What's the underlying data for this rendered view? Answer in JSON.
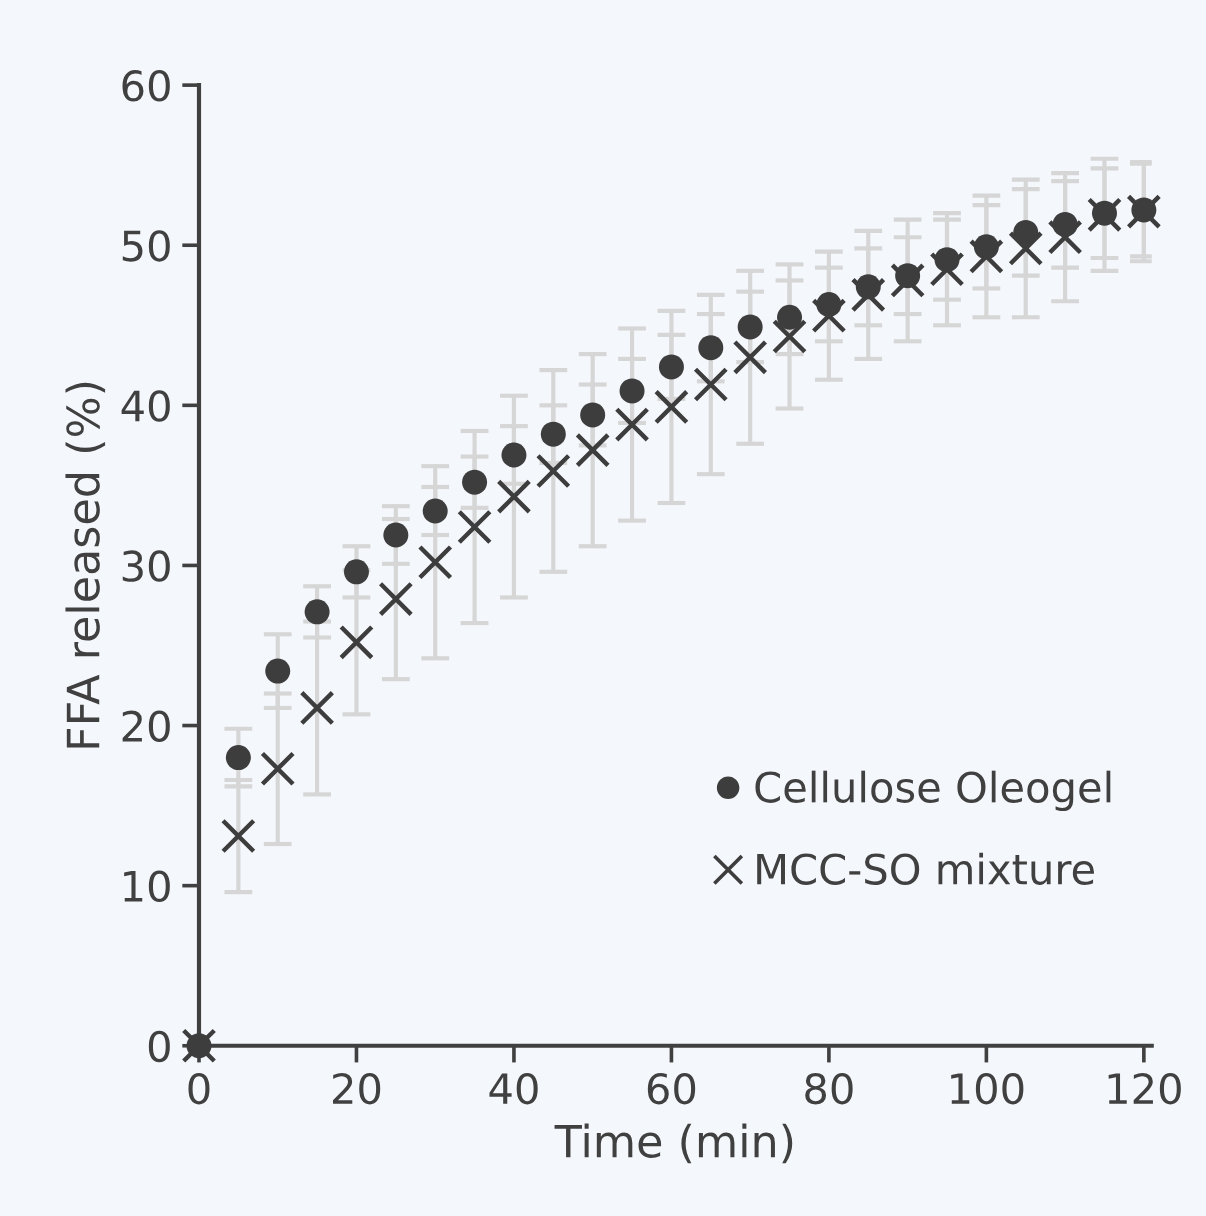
{
  "chart_data": {
    "type": "scatter",
    "xlabel": "Time (min)",
    "ylabel": "FFA released (%)",
    "x": [
      0,
      5,
      10,
      15,
      20,
      25,
      30,
      35,
      40,
      45,
      50,
      55,
      60,
      65,
      70,
      75,
      80,
      85,
      90,
      95,
      100,
      105,
      110,
      115,
      120
    ],
    "series": [
      {
        "name": "Cellulose Oleogel",
        "color": "#3d3d3d",
        "marker": "circle",
        "values": [
          0,
          18.0,
          23.4,
          27.1,
          29.6,
          31.9,
          33.4,
          35.2,
          36.9,
          38.2,
          39.4,
          40.9,
          42.4,
          43.6,
          44.9,
          45.5,
          46.3,
          47.4,
          48.1,
          49.1,
          49.9,
          50.8,
          51.3,
          52.0,
          52.2
        ],
        "errors": [
          null,
          1.8,
          2.3,
          1.6,
          1.6,
          1.8,
          1.5,
          1.6,
          1.8,
          1.8,
          1.9,
          2.0,
          2.0,
          2.1,
          2.2,
          2.3,
          2.3,
          2.4,
          2.4,
          2.5,
          2.6,
          2.7,
          2.7,
          2.8,
          2.9
        ]
      },
      {
        "name": "MCC-SO mixture",
        "color": "#3d3d3d",
        "marker": "cross",
        "values": [
          0,
          13.1,
          17.3,
          21.1,
          25.2,
          27.9,
          30.2,
          32.4,
          34.3,
          35.9,
          37.2,
          38.8,
          39.9,
          41.3,
          43.0,
          44.3,
          45.6,
          46.9,
          47.8,
          48.5,
          49.3,
          49.8,
          50.5,
          51.9,
          52.1
        ],
        "errors": [
          null,
          3.5,
          4.7,
          5.4,
          4.5,
          5.0,
          6.0,
          6.0,
          6.3,
          6.3,
          6.0,
          6.0,
          6.0,
          5.6,
          5.4,
          4.5,
          4.0,
          4.0,
          3.8,
          3.5,
          3.8,
          4.3,
          4.0,
          3.5,
          3.1
        ]
      }
    ],
    "xlim": [
      0,
      121
    ],
    "xticks": [
      0,
      20,
      40,
      60,
      80,
      100,
      120
    ],
    "ylim": [
      0,
      60
    ],
    "yticks": [
      0,
      10,
      20,
      30,
      40,
      50,
      60
    ],
    "grid": false,
    "legend": "bottom right"
  }
}
